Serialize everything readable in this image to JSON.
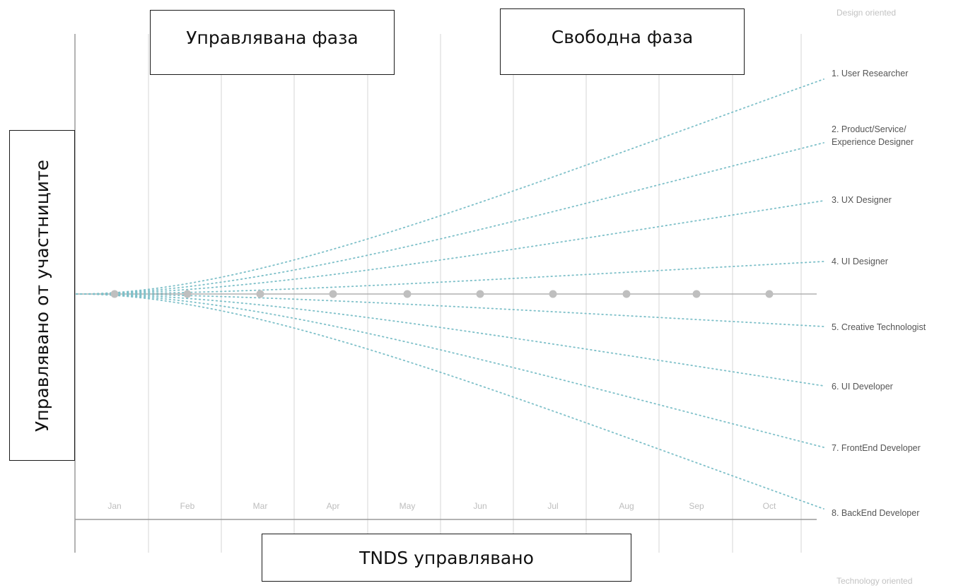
{
  "header": {
    "top_right": "Design oriented",
    "bottom_right": "Technology oriented"
  },
  "phases": {
    "guided": "Управлявана фаза",
    "free": "Свободна фаза"
  },
  "axes": {
    "vertical": "Управлявано от участниците",
    "horizontal": "TNDS управлявано"
  },
  "months": [
    "Jan",
    "Feb",
    "Mar",
    "Apr",
    "May",
    "Jun",
    "Jul",
    "Aug",
    "Sep",
    "Oct"
  ],
  "roles": [
    "1. User Researcher",
    "2. Product/Service/ Experience Designer",
    "3. UX Designer",
    "4. UI Designer",
    "5. Creative Technologist",
    "6. UI Developer",
    "7. FrontEnd Developer",
    "8. BackEnd Developer"
  ],
  "colors": {
    "dots": "#7ec0c9",
    "grid": "#dddddd",
    "axis": "#999999",
    "label": "#a0a0a0",
    "role": "#555555",
    "marker": "#bfbfbf"
  }
}
